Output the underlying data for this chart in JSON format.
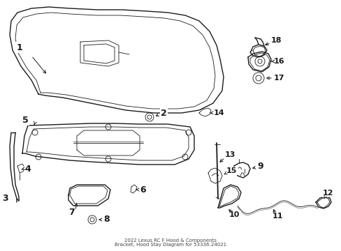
{
  "bg_color": "#ffffff",
  "line_color": "#1a1a1a",
  "title": "2022 Lexus RC F Hood & Components\nBracket, Hood Stay Diagram for 53336-24021"
}
